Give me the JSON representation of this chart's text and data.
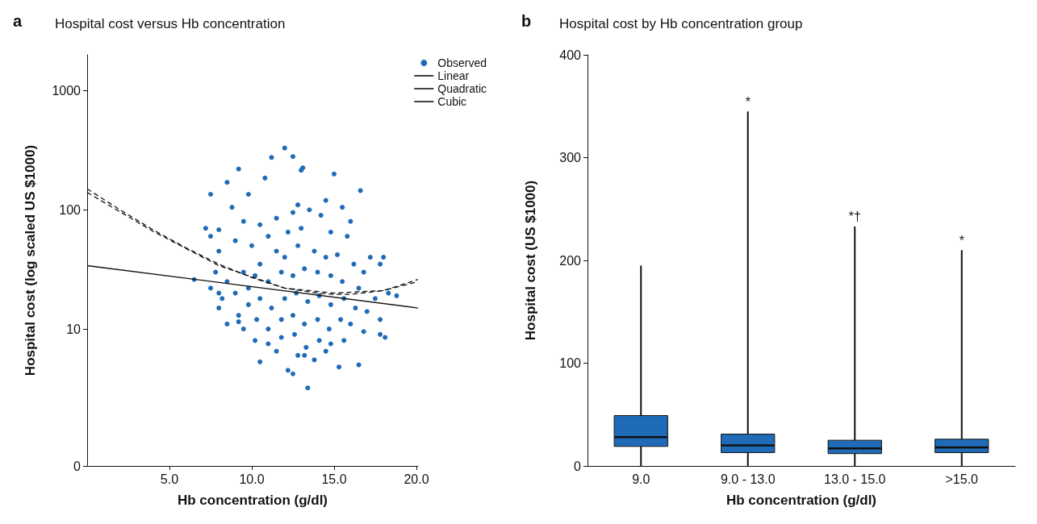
{
  "chart_data": [
    {
      "type": "scatter",
      "title": "Hospital cost versus Hb concentration",
      "xlabel": "Hb concentration (g/dl)",
      "ylabel": "Hospital cost (log scaled US $1000)",
      "log": "y",
      "xlim": [
        0,
        20.1
      ],
      "xticks": [
        {
          "value": 5,
          "label": "5.0"
        },
        {
          "value": 10,
          "label": "10.0"
        },
        {
          "value": 15,
          "label": "15.0"
        },
        {
          "value": 20,
          "label": "20.0"
        }
      ],
      "ylim": [
        0,
        2000
      ],
      "yticks": [
        0,
        10,
        100,
        1000
      ],
      "legend": "top right",
      "grid": false,
      "annotations": [
        "a"
      ],
      "series": [
        {
          "name": "Observed",
          "type": "scatter",
          "marker": "circle",
          "color": "#1f6bb8",
          "x": [
            12.0,
            12.5,
            11.2,
            9.2,
            13.1,
            13.0,
            15.0,
            10.8,
            8.5,
            7.5,
            9.8,
            16.6,
            8.8,
            14.5,
            12.8,
            7.2,
            8.0,
            9.5,
            10.5,
            11.5,
            12.5,
            13.5,
            14.2,
            15.5,
            16.0,
            11.0,
            12.2,
            13.0,
            14.8,
            15.8,
            17.2,
            17.8,
            18.0,
            9.0,
            10.0,
            8.0,
            7.8,
            8.5,
            9.5,
            10.5,
            11.5,
            12.0,
            12.8,
            13.8,
            14.5,
            15.2,
            16.2,
            16.8,
            6.5,
            7.5,
            8.2,
            9.0,
            9.8,
            10.2,
            11.0,
            11.8,
            12.5,
            13.2,
            14.0,
            14.8,
            15.5,
            16.5,
            17.5,
            18.3,
            18.8,
            8.0,
            9.2,
            9.8,
            10.5,
            11.2,
            12.0,
            12.7,
            13.4,
            14.1,
            14.8,
            15.6,
            16.3,
            17.0,
            17.8,
            8.5,
            9.5,
            10.3,
            11.0,
            11.8,
            12.5,
            13.2,
            14.0,
            14.7,
            15.4,
            16.0,
            16.8,
            17.8,
            18.1,
            10.2,
            11.0,
            11.8,
            12.6,
            13.3,
            14.1,
            14.8,
            15.6,
            10.5,
            12.2,
            12.5,
            13.2,
            13.8,
            14.5,
            15.3,
            16.5,
            13.4,
            12.8,
            11.5,
            9.2,
            8.0,
            7.5
          ],
          "values": [
            330,
            280,
            275,
            220,
            225,
            215,
            200,
            185,
            170,
            135,
            135,
            145,
            105,
            120,
            110,
            70,
            68,
            80,
            75,
            85,
            95,
            100,
            90,
            105,
            80,
            60,
            65,
            70,
            65,
            60,
            40,
            35,
            40,
            55,
            50,
            45,
            30,
            25,
            30,
            35,
            45,
            40,
            50,
            45,
            40,
            42,
            35,
            30,
            26,
            22,
            18,
            20,
            22,
            28,
            25,
            30,
            28,
            32,
            30,
            28,
            25,
            22,
            18,
            20,
            19,
            15,
            13,
            16,
            18,
            15,
            18,
            20,
            17,
            19,
            16,
            18,
            15,
            14,
            12,
            11,
            10,
            12,
            10,
            12,
            13,
            11,
            12,
            10,
            12,
            11,
            9.5,
            9,
            8.5,
            8,
            7.5,
            8.5,
            9,
            7,
            8,
            7.5,
            8,
            5.3,
            4.5,
            4.2,
            6,
            5.5,
            6.5,
            4.8,
            5,
            3.2,
            6,
            6.5,
            11.5,
            20,
            60
          ]
        },
        {
          "name": "Linear",
          "type": "line",
          "marker": "none",
          "line_style": "solid",
          "color": "#111111",
          "x": [
            0,
            20.1
          ],
          "values": [
            34,
            15
          ]
        },
        {
          "name": "Quadratic",
          "type": "line",
          "marker": "none",
          "line_style": "dashed",
          "color": "#111111",
          "x": [
            0,
            2,
            4,
            6,
            8,
            10,
            12,
            14,
            15,
            16,
            18,
            20.1
          ],
          "values": [
            150,
            100,
            68,
            48,
            35,
            27,
            22,
            20,
            19.5,
            19.5,
            21,
            26
          ]
        },
        {
          "name": "Cubic",
          "type": "line",
          "marker": "none",
          "line_style": "dashed",
          "color": "#111111",
          "x": [
            0,
            4,
            8,
            12,
            15,
            18,
            20.1
          ],
          "values": [
            140,
            66,
            34,
            22,
            20,
            21,
            25
          ]
        }
      ]
    },
    {
      "type": "box",
      "title": "Hospital cost by Hb concentration group",
      "xlabel": "Hb concentration (g/dl)",
      "ylabel": "Hospital cost (US $1000)",
      "categories": [
        "9.0",
        "9.0 - 13.0",
        "13.0 - 15.0",
        ">15.0"
      ],
      "ylim": [
        0,
        400
      ],
      "yticks": [
        0,
        100,
        200,
        300,
        400
      ],
      "grid": false,
      "legend": false,
      "color": "#1f6bb8",
      "boxes": [
        {
          "low": 0,
          "q1": 19,
          "median": 28,
          "q3": 49,
          "high": 195
        },
        {
          "low": 0,
          "q1": 13,
          "median": 20,
          "q3": 31,
          "high": 345
        },
        {
          "low": 0,
          "q1": 12,
          "median": 17,
          "q3": 25,
          "high": 233
        },
        {
          "low": 0,
          "q1": 13,
          "median": 18,
          "q3": 26,
          "high": 210
        }
      ],
      "annotations": [
        "b",
        {
          "text": "*",
          "x": "9.0 - 13.0",
          "y": 345
        },
        {
          "text": "*†",
          "x": "13.0 - 15.0",
          "y": 233
        },
        {
          "text": "*",
          "x": ">15.0",
          "y": 210
        }
      ]
    }
  ]
}
